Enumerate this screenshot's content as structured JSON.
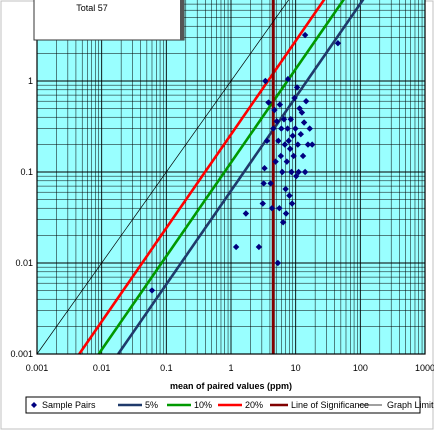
{
  "chart_data": {
    "type": "scatter",
    "title": "",
    "xlabel": "mean of paired values  (ppm)",
    "ylabel": "",
    "xscale": "log",
    "yscale": "log",
    "xlim": [
      0.001,
      1000
    ],
    "ylim": [
      0.001,
      10
    ],
    "grid": true,
    "x_ticks": [
      "0.001",
      "0.01",
      "0.1",
      "1",
      "10",
      "100",
      "1000"
    ],
    "y_ticks": [
      "0.001",
      "0.01",
      "0.1",
      "1"
    ],
    "plot_background": "#99ffff",
    "annotation_box": {
      "text": "Total 57"
    },
    "legend": {
      "position": "bottom",
      "entries": [
        {
          "name": "Sample Pairs",
          "marker": "diamond",
          "color": "#000080"
        },
        {
          "name": "5%",
          "color": "#1f3a6b"
        },
        {
          "name": "10%",
          "color": "#009900"
        },
        {
          "name": "20%",
          "color": "#ff0000"
        },
        {
          "name": "Line of Significance",
          "color": "#800000"
        },
        {
          "name": "Graph Limit",
          "color": "#000000"
        }
      ]
    },
    "series": [
      {
        "name": "Sample Pairs",
        "kind": "scatter",
        "color": "#000080",
        "points": [
          [
            0.06,
            0.005
          ],
          [
            1.2,
            0.015
          ],
          [
            1.7,
            0.035
          ],
          [
            2.7,
            0.015
          ],
          [
            3.1,
            0.045
          ],
          [
            3.2,
            0.075
          ],
          [
            3.3,
            0.11
          ],
          [
            3.4,
            1.0
          ],
          [
            3.6,
            0.22
          ],
          [
            3.8,
            0.58
          ],
          [
            4.1,
            0.075
          ],
          [
            4.3,
            0.04
          ],
          [
            4.5,
            0.3
          ],
          [
            4.7,
            0.48
          ],
          [
            4.9,
            0.13
          ],
          [
            5.1,
            0.36
          ],
          [
            5.3,
            0.01
          ],
          [
            5.4,
            0.22
          ],
          [
            5.6,
            0.04
          ],
          [
            5.7,
            0.55
          ],
          [
            5.9,
            0.15
          ],
          [
            6.0,
            0.3
          ],
          [
            6.2,
            0.1
          ],
          [
            6.4,
            0.028
          ],
          [
            6.6,
            0.38
          ],
          [
            6.8,
            0.2
          ],
          [
            7.0,
            0.065
          ],
          [
            7.1,
            0.035
          ],
          [
            7.3,
            0.13
          ],
          [
            7.5,
            0.3
          ],
          [
            7.6,
            1.05
          ],
          [
            7.8,
            0.22
          ],
          [
            8.0,
            0.055
          ],
          [
            8.2,
            0.18
          ],
          [
            8.4,
            0.38
          ],
          [
            8.6,
            0.1
          ],
          [
            8.8,
            0.045
          ],
          [
            9.0,
            0.25
          ],
          [
            9.3,
            0.15
          ],
          [
            9.6,
            0.65
          ],
          [
            9.9,
            0.3
          ],
          [
            10.2,
            0.09
          ],
          [
            10.5,
            0.85
          ],
          [
            10.8,
            0.2
          ],
          [
            11.1,
            0.1
          ],
          [
            11.5,
            0.5
          ],
          [
            12.0,
            0.26
          ],
          [
            12.5,
            0.45
          ],
          [
            13.0,
            0.15
          ],
          [
            13.5,
            0.35
          ],
          [
            14.0,
            0.1
          ],
          [
            14.5,
            0.6
          ],
          [
            15.5,
            0.2
          ],
          [
            16.5,
            0.3
          ],
          [
            18.0,
            0.2
          ],
          [
            14.0,
            3.2
          ],
          [
            45.0,
            2.6
          ]
        ]
      },
      {
        "name": "5%",
        "kind": "line",
        "color": "#1f3a6b",
        "x": [
          0.018,
          140
        ],
        "y": [
          0.001,
          10
        ]
      },
      {
        "name": "10%",
        "kind": "line",
        "color": "#009900",
        "x": [
          0.009,
          70
        ],
        "y": [
          0.001,
          10
        ]
      },
      {
        "name": "20%",
        "kind": "line",
        "color": "#ff0000",
        "x": [
          0.0045,
          35
        ],
        "y": [
          0.001,
          10
        ]
      },
      {
        "name": "Line of Significance",
        "kind": "vline",
        "color": "#800000",
        "x": 4.5
      },
      {
        "name": "Graph Limit",
        "kind": "line",
        "color": "#000000",
        "x": [
          0.001,
          10
        ],
        "y": [
          0.001,
          10
        ]
      }
    ]
  }
}
